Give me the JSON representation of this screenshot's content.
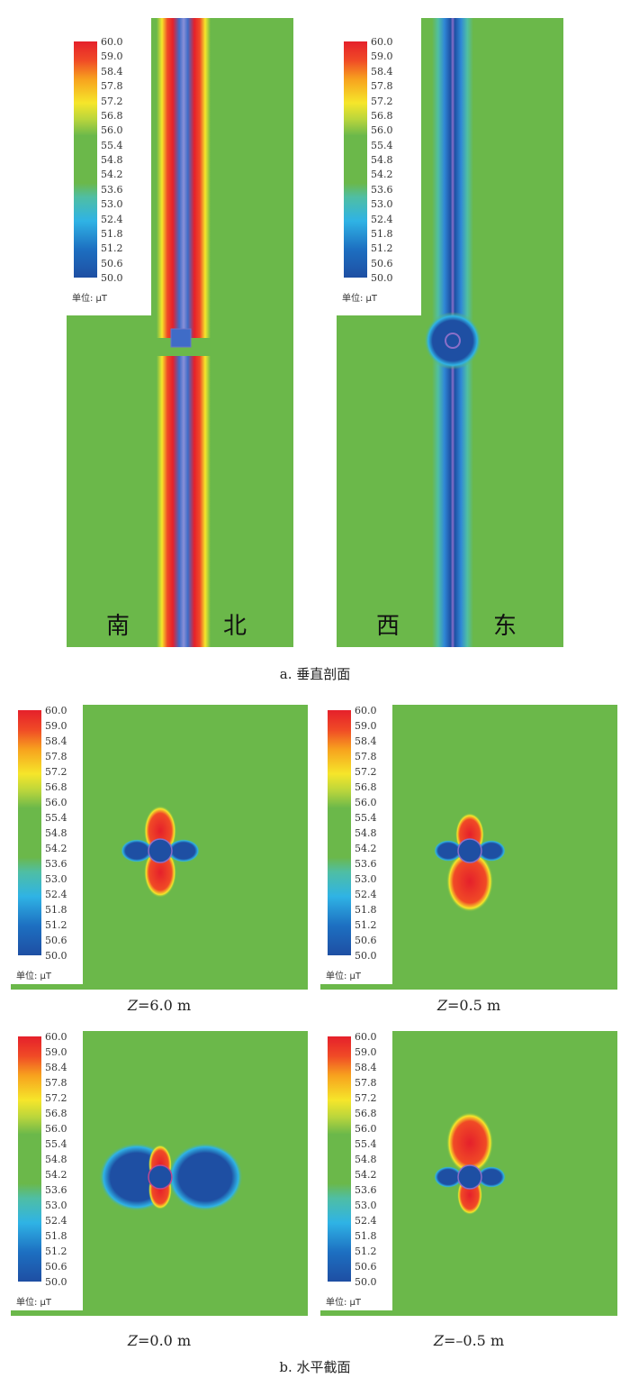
{
  "colorbar": {
    "ticks": [
      "60.0",
      "59.0",
      "58.4",
      "57.8",
      "57.2",
      "56.8",
      "56.0",
      "55.4",
      "54.8",
      "54.2",
      "53.6",
      "53.0",
      "52.4",
      "51.8",
      "51.2",
      "50.6",
      "50.0"
    ],
    "unit": "单位: μT",
    "colors": [
      "#e5202b",
      "#f7a21e",
      "#f6e62a",
      "#6bb84a",
      "#2fb3e5",
      "#1e4fa3"
    ]
  },
  "vertical": {
    "caption": "a. 垂直剖面",
    "left": {
      "dir_left": "南",
      "dir_right": "北"
    },
    "right": {
      "dir_left": "西",
      "dir_right": "东"
    }
  },
  "horizontal": {
    "caption": "b. 水平截面",
    "panels": [
      {
        "z_var": "Z",
        "z_value": "=6.0 m"
      },
      {
        "z_var": "Z",
        "z_value": "=0.5 m"
      },
      {
        "z_var": "Z",
        "z_value": "=0.0 m"
      },
      {
        "z_var": "Z",
        "z_value": "=–0.5 m"
      }
    ]
  }
}
